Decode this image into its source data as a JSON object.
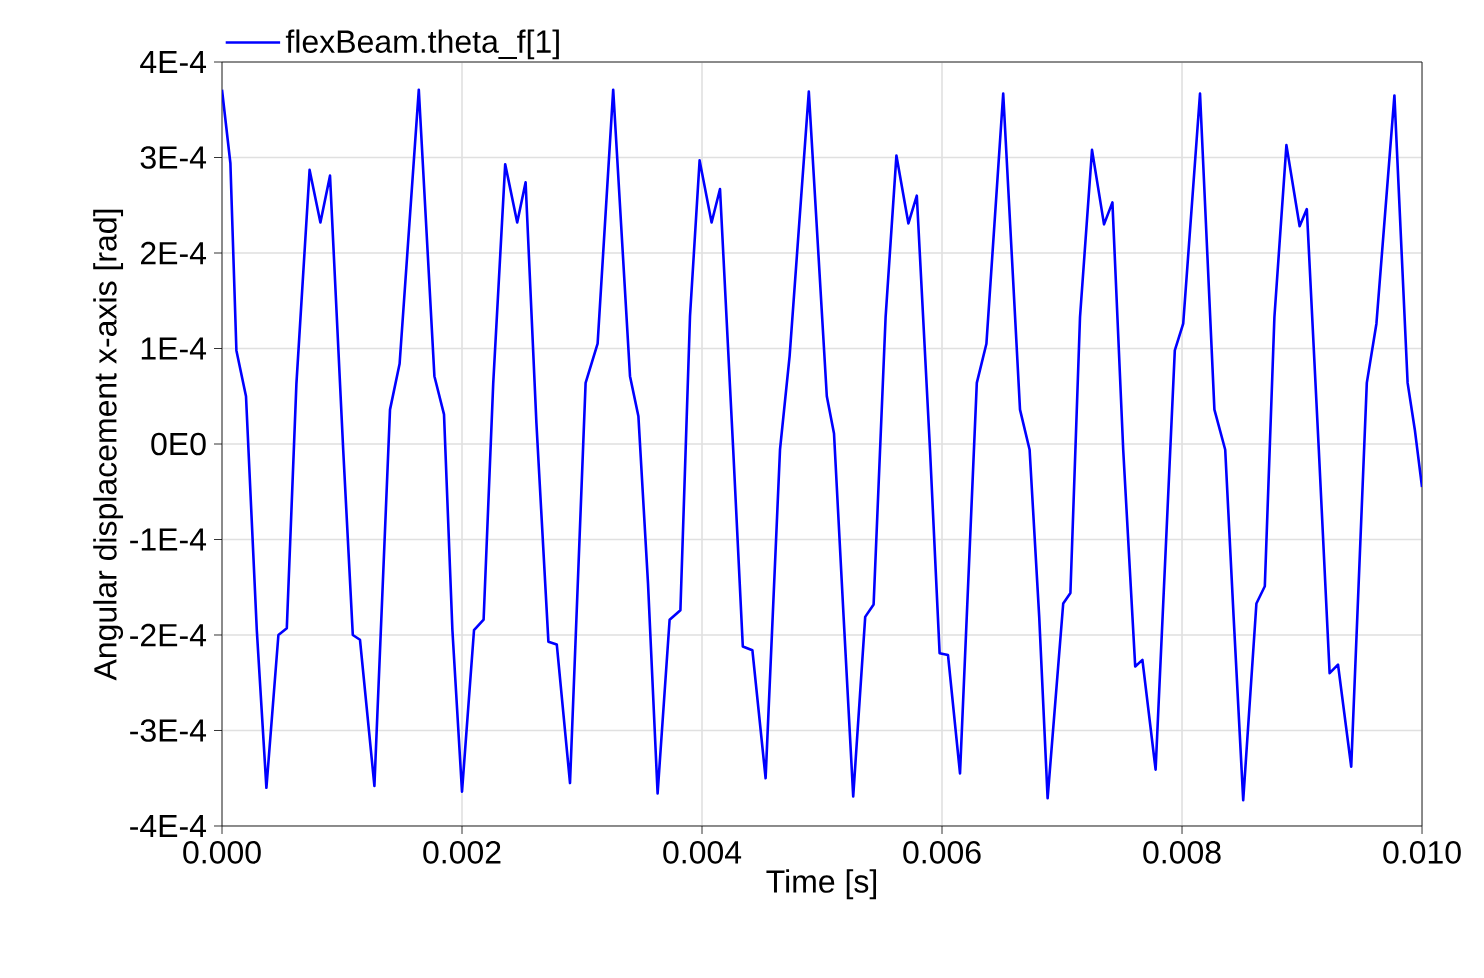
{
  "chart_data": {
    "type": "line",
    "xlabel": "Time [s]",
    "ylabel": "Angular displacement x-axis [rad]",
    "xlim": [
      0,
      0.01
    ],
    "ylim": [
      -0.0004,
      0.0004
    ],
    "xticks": [
      {
        "value": 0,
        "label": "0.000"
      },
      {
        "value": 0.002,
        "label": "0.002"
      },
      {
        "value": 0.004,
        "label": "0.004"
      },
      {
        "value": 0.006,
        "label": "0.006"
      },
      {
        "value": 0.008,
        "label": "0.008"
      },
      {
        "value": 0.01,
        "label": "0.010"
      }
    ],
    "yticks": [
      {
        "value": -0.0004,
        "label": "-4E-4"
      },
      {
        "value": -0.0003,
        "label": "-3E-4"
      },
      {
        "value": -0.0002,
        "label": "-2E-4"
      },
      {
        "value": -0.0001,
        "label": "-1E-4"
      },
      {
        "value": 0,
        "label": "0E0"
      },
      {
        "value": 0.0001,
        "label": "1E-4"
      },
      {
        "value": 0.0002,
        "label": "2E-4"
      },
      {
        "value": 0.0003,
        "label": "3E-4"
      },
      {
        "value": 0.0004,
        "label": "4E-4"
      }
    ],
    "grid": true,
    "legend": "top left",
    "marker": "none",
    "line_style": "solid",
    "series": [
      {
        "name": "flexBeam.theta_f[1]",
        "color": "#0000ff",
        "x": [
          0,
          7e-05,
          0.00012,
          0.0002,
          0.00029,
          0.00037,
          0.00047,
          0.00054,
          0.00062,
          0.00073,
          0.00082,
          0.0009,
          0.00101,
          0.00109,
          0.00115,
          0.00127,
          0.0014,
          0.00148,
          0.00164,
          0.00177,
          0.00185,
          0.00192,
          0.002,
          0.0021,
          0.00218,
          0.00226,
          0.00236,
          0.00246,
          0.00253,
          0.00262,
          0.00272,
          0.00279,
          0.0029,
          0.00303,
          0.00313,
          0.00326,
          0.0034,
          0.00347,
          0.00355,
          0.00363,
          0.00373,
          0.00382,
          0.0039,
          0.00398,
          0.00408,
          0.00415,
          0.00426,
          0.00434,
          0.00442,
          0.00453,
          0.00465,
          0.00473,
          0.00489,
          0.00504,
          0.0051,
          0.00518,
          0.00526,
          0.00536,
          0.00543,
          0.00553,
          0.00562,
          0.00572,
          0.00579,
          0.0059,
          0.00598,
          0.00605,
          0.00615,
          0.00629,
          0.00637,
          0.00651,
          0.00665,
          0.00673,
          0.00681,
          0.00688,
          0.00701,
          0.00707,
          0.00715,
          0.00725,
          0.00735,
          0.00742,
          0.00751,
          0.00761,
          0.00767,
          0.00778,
          0.00794,
          0.00801,
          0.00815,
          0.00827,
          0.00836,
          0.00843,
          0.00851,
          0.00862,
          0.00869,
          0.00877,
          0.00887,
          0.00898,
          0.00904,
          0.00914,
          0.00923,
          0.0093,
          0.00941,
          0.00954,
          0.00962,
          0.00977,
          0.00988,
          0.00994,
          0.01
        ],
        "values": [
          0.000371,
          0.000294,
          9.8e-05,
          5e-05,
          -0.000195,
          -0.00036,
          -0.0002,
          -0.000193,
          6.3e-05,
          0.000287,
          0.000232,
          0.000281,
          -6e-06,
          -0.0002,
          -0.000205,
          -0.000358,
          3.6e-05,
          8.4e-05,
          0.000371,
          7.1e-05,
          3.1e-05,
          -0.000195,
          -0.000364,
          -0.000195,
          -0.000184,
          6.3e-05,
          0.000293,
          0.000232,
          0.000274,
          2.2e-05,
          -0.000207,
          -0.00021,
          -0.000355,
          6.4e-05,
          0.000105,
          0.000371,
          7.1e-05,
          2.9e-05,
          -0.000146,
          -0.000366,
          -0.000184,
          -0.000174,
          0.000134,
          0.000297,
          0.000232,
          0.000267,
          -6e-06,
          -0.000212,
          -0.000216,
          -0.00035,
          -6e-06,
          9.2e-05,
          0.000369,
          5e-05,
          1.1e-05,
          -0.000181,
          -0.000369,
          -0.000181,
          -0.000168,
          0.000133,
          0.000302,
          0.000231,
          0.00026,
          -6e-06,
          -0.000219,
          -0.000221,
          -0.000345,
          6.4e-05,
          0.000105,
          0.000367,
          3.6e-05,
          -6e-06,
          -0.000181,
          -0.000371,
          -0.000167,
          -0.000156,
          0.000133,
          0.000308,
          0.00023,
          0.000253,
          -6e-06,
          -0.000233,
          -0.000226,
          -0.000341,
          9.8e-05,
          0.000126,
          0.000367,
          3.6e-05,
          -6e-06,
          -0.000181,
          -0.000373,
          -0.000167,
          -0.000149,
          0.000133,
          0.000313,
          0.000228,
          0.000246,
          -6e-06,
          -0.00024,
          -0.000231,
          -0.000338,
          6.4e-05,
          0.000126,
          0.000365,
          6.4e-05,
          1.5e-05,
          -4.5e-05
        ]
      }
    ]
  }
}
